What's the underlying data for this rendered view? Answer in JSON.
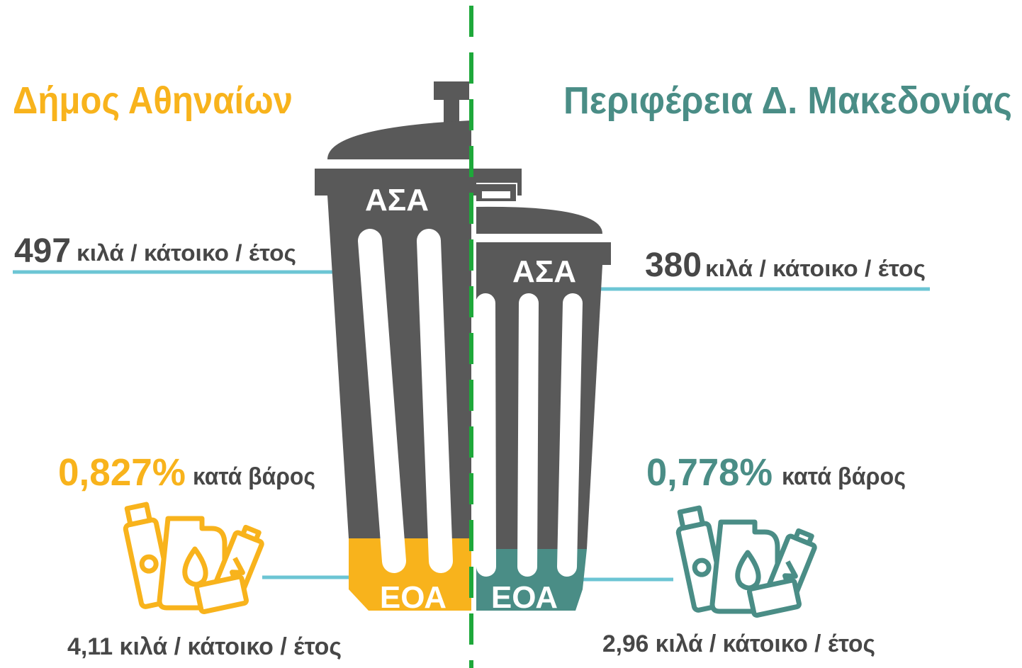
{
  "left": {
    "title": "Δήμος Αθηναίων",
    "per_capita": {
      "value": "497",
      "unit": "κιλά / κάτοικο / έτος"
    },
    "bin": {
      "top_label": "ΑΣΑ",
      "bottom_label": "ΕΟΑ"
    },
    "eoa_share": {
      "value": "0,827%",
      "unit": "κατά βάρος"
    },
    "eoa_per_capita": "4,11 κιλά / κάτοικο / έτος"
  },
  "right": {
    "title": "Περιφέρεια Δ. Μακεδονίας",
    "per_capita": {
      "value": "380",
      "unit": "κιλά / κάτοικο / έτος"
    },
    "bin": {
      "top_label": "ΑΣΑ",
      "bottom_label": "ΕΟΑ"
    },
    "eoa_share": {
      "value": "0,778%",
      "unit": "κατά βάρος"
    },
    "eoa_per_capita": "2,96 κιλά / κάτοικο / έτος"
  }
}
